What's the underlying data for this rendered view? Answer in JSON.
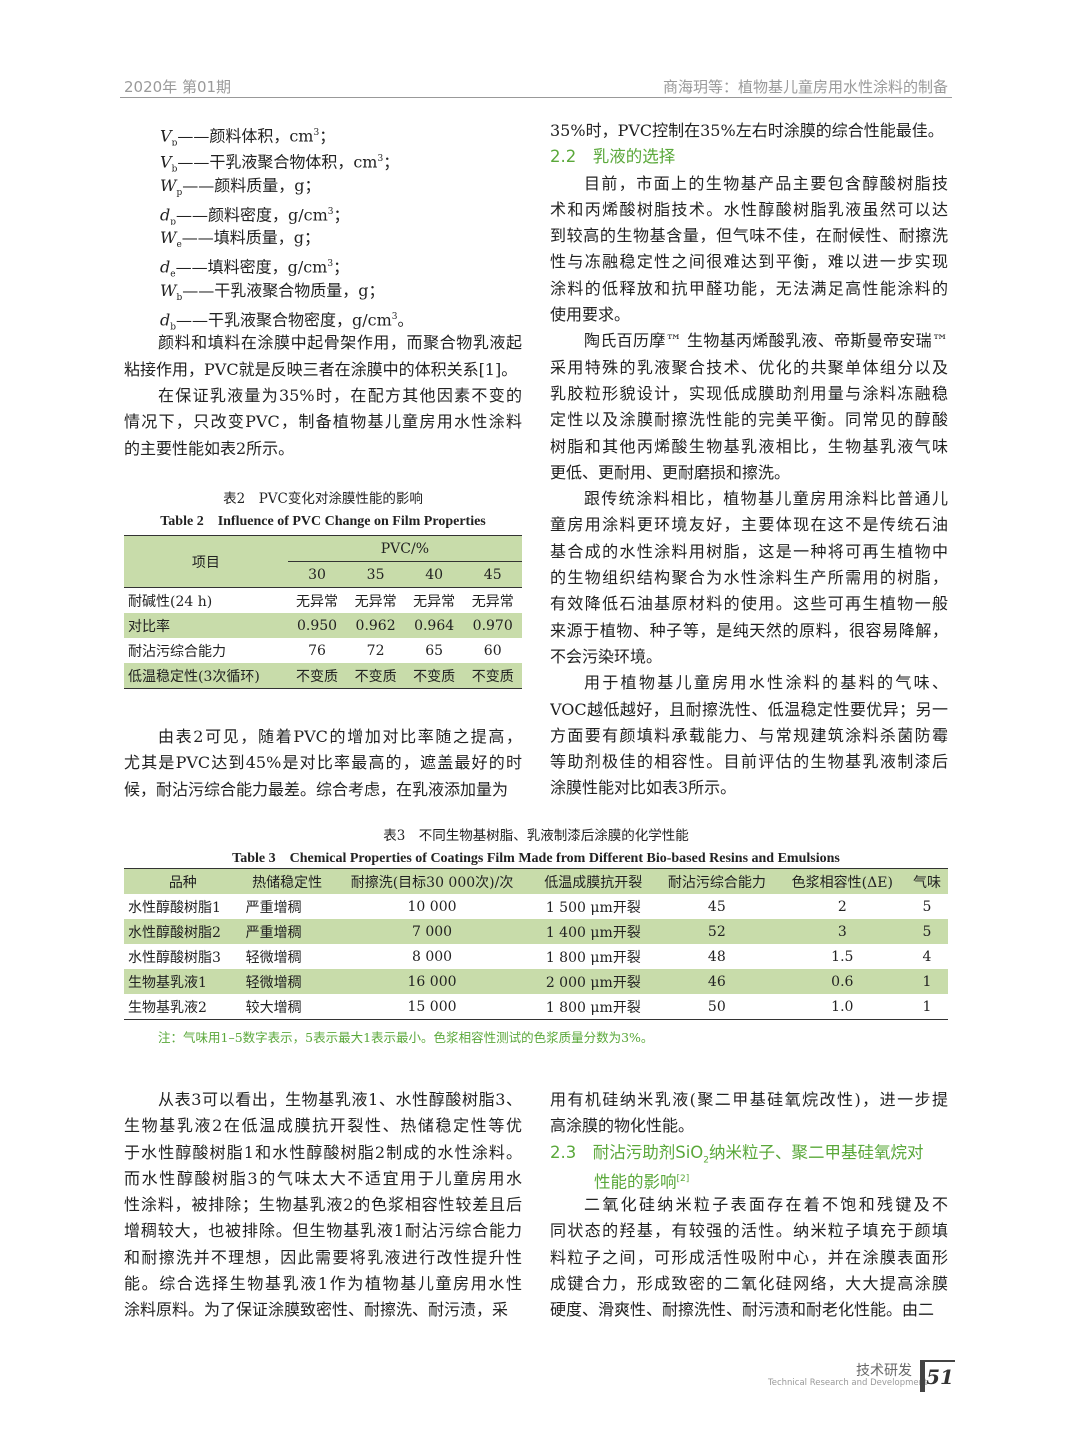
{
  "header": {
    "left": "2020年  第01期",
    "right": "商海玥等：植物基儿童房用水性涂料的制备"
  },
  "variables": [
    {
      "sym": "V",
      "sub": "p",
      "desc": "——颜料体积，cm",
      "sup": "3",
      "end": "；"
    },
    {
      "sym": "V",
      "sub": "b",
      "desc": "——干乳液聚合物体积，cm",
      "sup": "3",
      "end": "；"
    },
    {
      "sym": "W",
      "sub": "p",
      "desc": "——颜料质量，g；",
      "sup": "",
      "end": ""
    },
    {
      "sym": "d",
      "sub": "p",
      "desc": "——颜料密度，g/cm",
      "sup": "3",
      "end": "；"
    },
    {
      "sym": "W",
      "sub": "e",
      "desc": "——填料质量，g；",
      "sup": "",
      "end": ""
    },
    {
      "sym": "d",
      "sub": "e",
      "desc": "——填料密度，g/cm",
      "sup": "3",
      "end": "；"
    },
    {
      "sym": "W",
      "sub": "b",
      "desc": "——干乳液聚合物质量，g；",
      "sup": "",
      "end": ""
    },
    {
      "sym": "d",
      "sub": "b",
      "desc": "——干乳液聚合物密度，g/cm",
      "sup": "3",
      "end": "。"
    }
  ],
  "left_top_paras": [
    [
      "颜料和填料在涂膜中起骨架作用，而聚合物乳液起",
      "粘接作用，PVC就是反映三者在涂膜中的体积关系[1]。"
    ],
    [
      "在保证乳液量为35%时，在配方其他因素不变的",
      "情况下，只改变PVC，制备植物基儿童房用水性涂料",
      "的主要性能如表2所示。"
    ]
  ],
  "table2": {
    "caption_cn": "表2　PVC变化对涂膜性能的影响",
    "caption_en": "Table 2　Influence of PVC Change on Film Properties",
    "item_header": "项目",
    "group_header": "PVC/%",
    "columns": [
      "30",
      "35",
      "40",
      "45"
    ],
    "rows": [
      {
        "label": "耐碱性(24 h)",
        "values": [
          "无异常",
          "无异常",
          "无异常",
          "无异常"
        ]
      },
      {
        "label": "对比率",
        "values": [
          "0.950",
          "0.962",
          "0.964",
          "0.970"
        ]
      },
      {
        "label": "耐沾污综合能力",
        "values": [
          "76",
          "72",
          "65",
          "60"
        ]
      },
      {
        "label": "低温稳定性(3次循环)",
        "values": [
          "不变质",
          "不变质",
          "不变质",
          "不变质"
        ]
      }
    ]
  },
  "left_mid_para": [
    "由表2可见，随着PVC的增加对比率随之提高，",
    "尤其是PVC达到45%是对比率最高的，遮盖最好的时",
    "候，耐沾污综合能力最差。综合考虑，在乳液添加量为"
  ],
  "right_top": {
    "cont": "35%时，PVC控制在35%左右时涂膜的综合性能最佳。",
    "heading": "2.2　乳液的选择",
    "paras": [
      [
        "目前，市面上的生物基产品主要包含醇酸树脂技",
        "术和丙烯酸树脂技术。水性醇酸树脂乳液虽然可以达",
        "到较高的生物基含量，但气味不佳，在耐候性、耐擦洗",
        "性与冻融稳定性之间很难达到平衡，难以进一步实现",
        "涂料的低释放和抗甲醛功能，无法满足高性能涂料的",
        "使用要求。"
      ],
      [
        "陶氏百历摩™ 生物基丙烯酸乳液、帝斯曼帝安瑞™",
        "采用特殊的乳液聚合技术、优化的共聚单体组分以及",
        "乳胶粒形貌设计，实现低成膜助剂用量与涂料冻融稳",
        "定性以及涂膜耐擦洗性能的完美平衡。同常见的醇酸",
        "树脂和其他丙烯酸生物基乳液相比，生物基乳液气味",
        "更低、更耐用、更耐磨损和擦洗。"
      ],
      [
        "跟传统涂料相比，植物基儿童房用涂料比普通儿",
        "童房用涂料更环境友好，主要体现在这不是传统石油",
        "基合成的水性涂料用树脂，这是一种将可再生植物中",
        "的生物组织结构聚合为水性涂料生产所需用的树脂，",
        "有效降低石油基原材料的使用。这些可再生植物一般",
        "来源于植物、种子等，是纯天然的原料，很容易降解，",
        "不会污染环境。"
      ],
      [
        "用于植物基儿童房用水性涂料的基料的气味、",
        "VOC越低越好，且耐擦洗性、低温稳定性要优异；另一",
        "方面要有颜填料承载能力、与常规建筑涂料杀菌防霉",
        "等助剂极佳的相容性。目前评估的生物基乳液制漆后",
        "涂膜性能对比如表3所示。"
      ]
    ]
  },
  "table3": {
    "caption_cn": "表3　不同生物基树脂、乳液制漆后涂膜的化学性能",
    "caption_en": "Table 3　Chemical Properties of Coatings Film Made from Different Bio-based Resins and Emulsions",
    "headers": [
      "品种",
      "热储稳定性",
      "耐擦洗(目标30 000次)/次",
      "低温成膜抗开裂",
      "耐沾污综合能力",
      "色浆相容性(ΔE)",
      "气味"
    ],
    "rows": [
      [
        "水性醇酸树脂1",
        "严重增稠",
        "10 000",
        "1 500 μm开裂",
        "45",
        "2",
        "5"
      ],
      [
        "水性醇酸树脂2",
        "严重增稠",
        "7 000",
        "1 400 μm开裂",
        "52",
        "3",
        "5"
      ],
      [
        "水性醇酸树脂3",
        "轻微增稠",
        "8 000",
        "1 800 μm开裂",
        "48",
        "1.5",
        "4"
      ],
      [
        "生物基乳液1",
        "轻微增稠",
        "16 000",
        "2 000 μm开裂",
        "46",
        "0.6",
        "1"
      ],
      [
        "生物基乳液2",
        "较大增稠",
        "15 000",
        "1 800 μm开裂",
        "50",
        "1.0",
        "1"
      ]
    ],
    "note": "注：气味用1–5数字表示，5表示最大1表示最小。色浆相容性测试的色浆质量分数为3%。"
  },
  "left_bottom_para": [
    "从表3可以看出，生物基乳液1、水性醇酸树脂3、",
    "生物基乳液2在低温成膜抗开裂性、热储稳定性等优",
    "于水性醇酸树脂1和水性醇酸树脂2制成的水性涂料。",
    "而水性醇酸树脂3的气味太大不适宜用于儿童房用水",
    "性涂料，被排除；生物基乳液2的色浆相容性较差且后",
    "增稠较大，也被排除。但生物基乳液1耐沾污综合能力",
    "和耐擦洗并不理想，因此需要将乳液进行改性提升性",
    "能。综合选择生物基乳液1作为植物基儿童房用水性",
    "涂料原料。为了保证涂膜致密性、耐擦洗、耐污渍，采"
  ],
  "right_bottom": {
    "cont": [
      "用有机硅纳米乳液(聚二甲基硅氧烷改性)，进一步提",
      "高涂膜的物化性能。"
    ],
    "heading_a": "2.3　耐沾污助剂SiO",
    "heading_sub": "2",
    "heading_b": "纳米粒子、聚二甲基硅氧烷对",
    "heading_c": "性能的影响",
    "heading_ref": "[2]",
    "para": [
      "二氧化硅纳米粒子表面存在着不饱和残键及不",
      "同状态的羟基，有较强的活性。纳米粒子填充于颜填",
      "料粒子之间，可形成活性吸附中心，并在涂膜表面形",
      "成键合力，形成致密的二氧化硅网络，大大提高涂膜",
      "硬度、滑爽性、耐擦洗性、耐污渍和耐老化性能。由二"
    ]
  },
  "footer": {
    "cn": "技术研发",
    "en": "Technical Research and Development",
    "page": "51"
  },
  "colors": {
    "accent_green": "#5aa83a",
    "table_stripe": "#c8dcaa"
  }
}
